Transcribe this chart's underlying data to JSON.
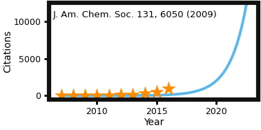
{
  "title": "",
  "xlabel": "Year",
  "ylabel": "Citations",
  "annotation": "J. Am. Chem. Soc. 131, 6050 (2009)",
  "star_years": [
    2007,
    2008,
    2009,
    2010,
    2011,
    2012,
    2013,
    2014,
    2015,
    2016
  ],
  "star_citations": [
    10,
    20,
    30,
    40,
    50,
    80,
    150,
    280,
    500,
    1000
  ],
  "curve_x_start": 2007.0,
  "curve_x_end": 2022.8,
  "ylim": [
    -500,
    12500
  ],
  "xlim": [
    2006.0,
    2023.5
  ],
  "yticks": [
    0,
    5000,
    10000
  ],
  "xticks": [
    2010,
    2015,
    2020
  ],
  "star_color": "#FF8C00",
  "curve_color": "#5BB8E8",
  "bg_color": "#FFFFFF",
  "border_color": "#111111",
  "label_fontsize": 10,
  "tick_fontsize": 9,
  "annotation_fontsize": 9.5,
  "curve_A": 1.5,
  "curve_B": 0.72,
  "curve_t0": 2010.0
}
